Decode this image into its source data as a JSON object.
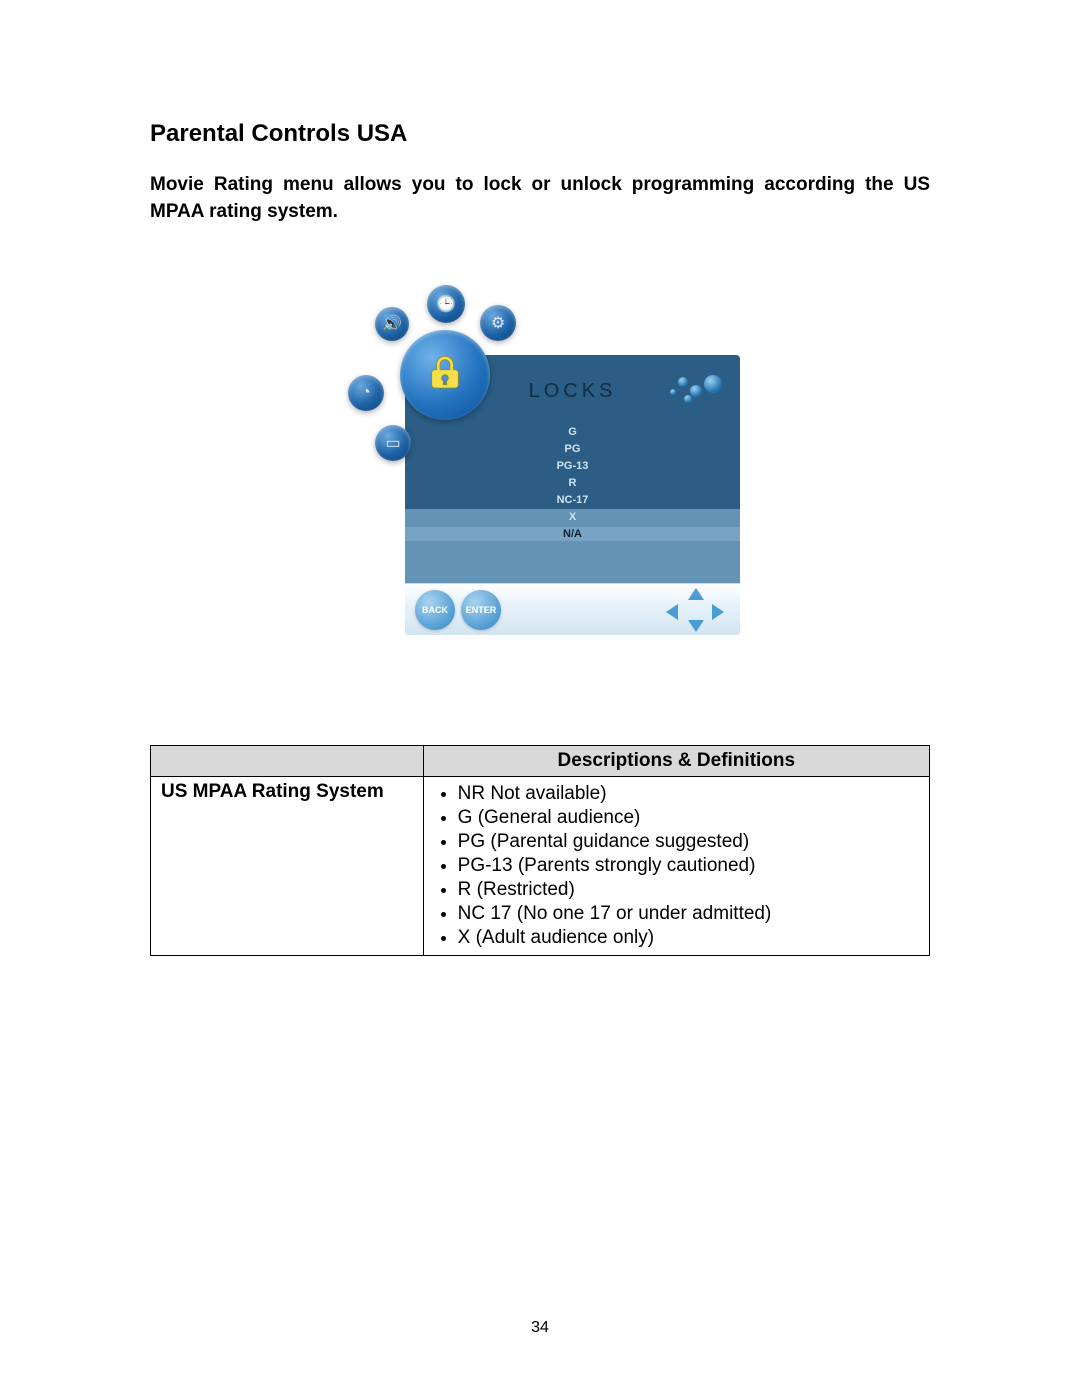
{
  "page": {
    "title": "Parental Controls USA",
    "intro": "Movie Rating menu allows you to lock or unlock programming according the US MPAA rating system.",
    "page_number": "34"
  },
  "screenshot": {
    "menu_title": "LOCKS",
    "ratings": [
      "G",
      "PG",
      "PG-13",
      "R",
      "NC-17",
      "X",
      "N/A"
    ],
    "selected_index": 6,
    "buttons": {
      "back": "BACK",
      "enter": "ENTER"
    },
    "orbit_icons": [
      "speaker-icon",
      "clock-icon",
      "gear-icon",
      "pie-icon",
      "tv-icon"
    ],
    "panel_bg_top": "#2b5d85",
    "panel_bg_bottom": "#6393b5",
    "title_color": "#102d44"
  },
  "table": {
    "header_left": "",
    "header_right": "Descriptions & Definitions",
    "row_label": "US MPAA Rating System",
    "items": [
      "NR Not available)",
      "G (General audience)",
      "PG (Parental guidance suggested)",
      "PG-13 (Parents strongly cautioned)",
      "R (Restricted)",
      "NC 17 (No one 17 or under admitted)",
      "X (Adult audience only)"
    ]
  }
}
